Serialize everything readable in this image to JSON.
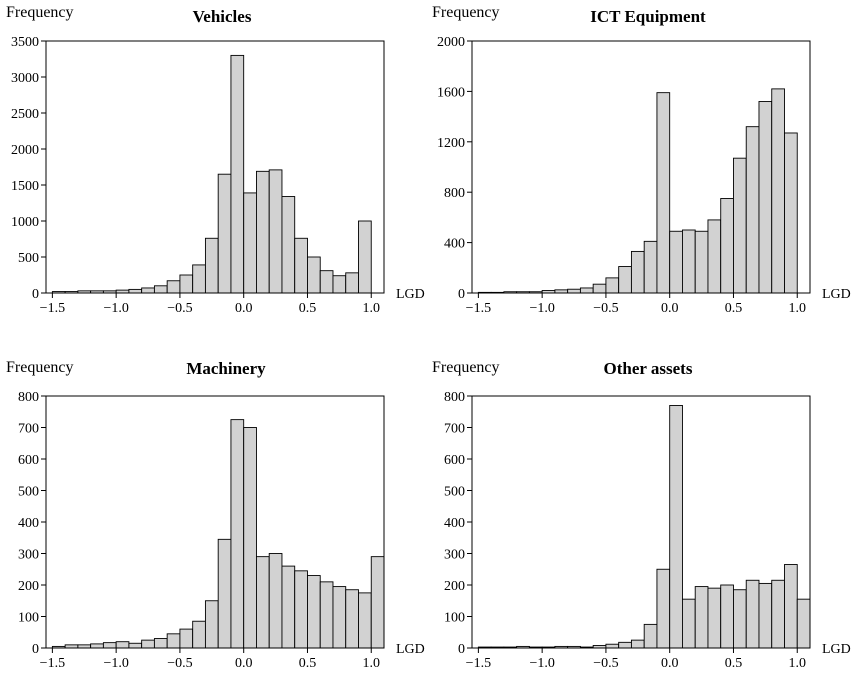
{
  "chart_data": [
    {
      "type": "bar",
      "title": "Vehicles",
      "ylabel": "Frequency",
      "xlabel": "LGD",
      "ylim": [
        0,
        3500
      ],
      "xlim": [
        -1.55,
        1.1
      ],
      "yticks": [
        0,
        500,
        1000,
        1500,
        2000,
        2500,
        3000,
        3500
      ],
      "xticks": [
        -1.5,
        -1.0,
        -0.5,
        0.0,
        0.5,
        1.0
      ],
      "ytick_labels": [
        "0",
        "500",
        "1000",
        "1500",
        "2000",
        "2500",
        "3000",
        "3500"
      ],
      "xtick_labels": [
        "−1.5",
        "−1.0",
        "−0.5",
        "0.0",
        "0.5",
        "1.0"
      ],
      "bin_start": -1.5,
      "bin_width": 0.1,
      "values": [
        20,
        20,
        30,
        30,
        30,
        40,
        50,
        70,
        100,
        170,
        250,
        390,
        760,
        1650,
        3300,
        1390,
        1690,
        1710,
        1340,
        760,
        500,
        310,
        240,
        280,
        1000
      ]
    },
    {
      "type": "bar",
      "title": "ICT Equipment",
      "ylabel": "Frequency",
      "xlabel": "LGD",
      "ylim": [
        0,
        2000
      ],
      "xlim": [
        -1.55,
        1.1
      ],
      "yticks": [
        0,
        400,
        800,
        1200,
        1600,
        2000
      ],
      "xticks": [
        -1.5,
        -1.0,
        -0.5,
        0.0,
        0.5,
        1.0
      ],
      "ytick_labels": [
        "0",
        "400",
        "800",
        "1200",
        "1600",
        "2000"
      ],
      "xtick_labels": [
        "−1.5",
        "−1.0",
        "−0.5",
        "0.0",
        "0.5",
        "1.0"
      ],
      "bin_start": -1.5,
      "bin_width": 0.1,
      "values": [
        5,
        5,
        10,
        10,
        10,
        20,
        25,
        30,
        40,
        70,
        120,
        210,
        330,
        410,
        1590,
        490,
        500,
        490,
        580,
        750,
        1070,
        1320,
        1520,
        1620,
        1270
      ]
    },
    {
      "type": "bar",
      "title": "Machinery",
      "ylabel": "Frequency",
      "xlabel": "LGD",
      "ylim": [
        0,
        800
      ],
      "xlim": [
        -1.55,
        1.1
      ],
      "yticks": [
        0,
        100,
        200,
        300,
        400,
        500,
        600,
        700,
        800
      ],
      "xticks": [
        -1.5,
        -1.0,
        -0.5,
        0.0,
        0.5,
        1.0
      ],
      "ytick_labels": [
        "0",
        "100",
        "200",
        "300",
        "400",
        "500",
        "600",
        "700",
        "800"
      ],
      "xtick_labels": [
        "−1.5",
        "−1.0",
        "−0.5",
        "0.0",
        "0.5",
        "1.0"
      ],
      "bin_start": -1.5,
      "bin_width": 0.1,
      "values": [
        5,
        10,
        10,
        13,
        17,
        20,
        15,
        25,
        30,
        45,
        60,
        85,
        150,
        345,
        725,
        700,
        290,
        300,
        260,
        245,
        230,
        210,
        195,
        185,
        175,
        290
      ]
    },
    {
      "type": "bar",
      "title": "Other assets",
      "ylabel": "Frequency",
      "xlabel": "LGD",
      "ylim": [
        0,
        800
      ],
      "xlim": [
        -1.55,
        1.1
      ],
      "yticks": [
        0,
        100,
        200,
        300,
        400,
        500,
        600,
        700,
        800
      ],
      "xticks": [
        -1.5,
        -1.0,
        -0.5,
        0.0,
        0.5,
        1.0
      ],
      "ytick_labels": [
        "0",
        "100",
        "200",
        "300",
        "400",
        "500",
        "600",
        "700",
        "800"
      ],
      "xtick_labels": [
        "−1.5",
        "−1.0",
        "−0.5",
        "0.0",
        "0.5",
        "1.0"
      ],
      "bin_start": -1.5,
      "bin_width": 0.1,
      "values": [
        3,
        3,
        3,
        5,
        3,
        3,
        5,
        5,
        3,
        8,
        12,
        18,
        25,
        75,
        250,
        770,
        155,
        195,
        190,
        200,
        185,
        215,
        205,
        215,
        265,
        155
      ]
    }
  ]
}
